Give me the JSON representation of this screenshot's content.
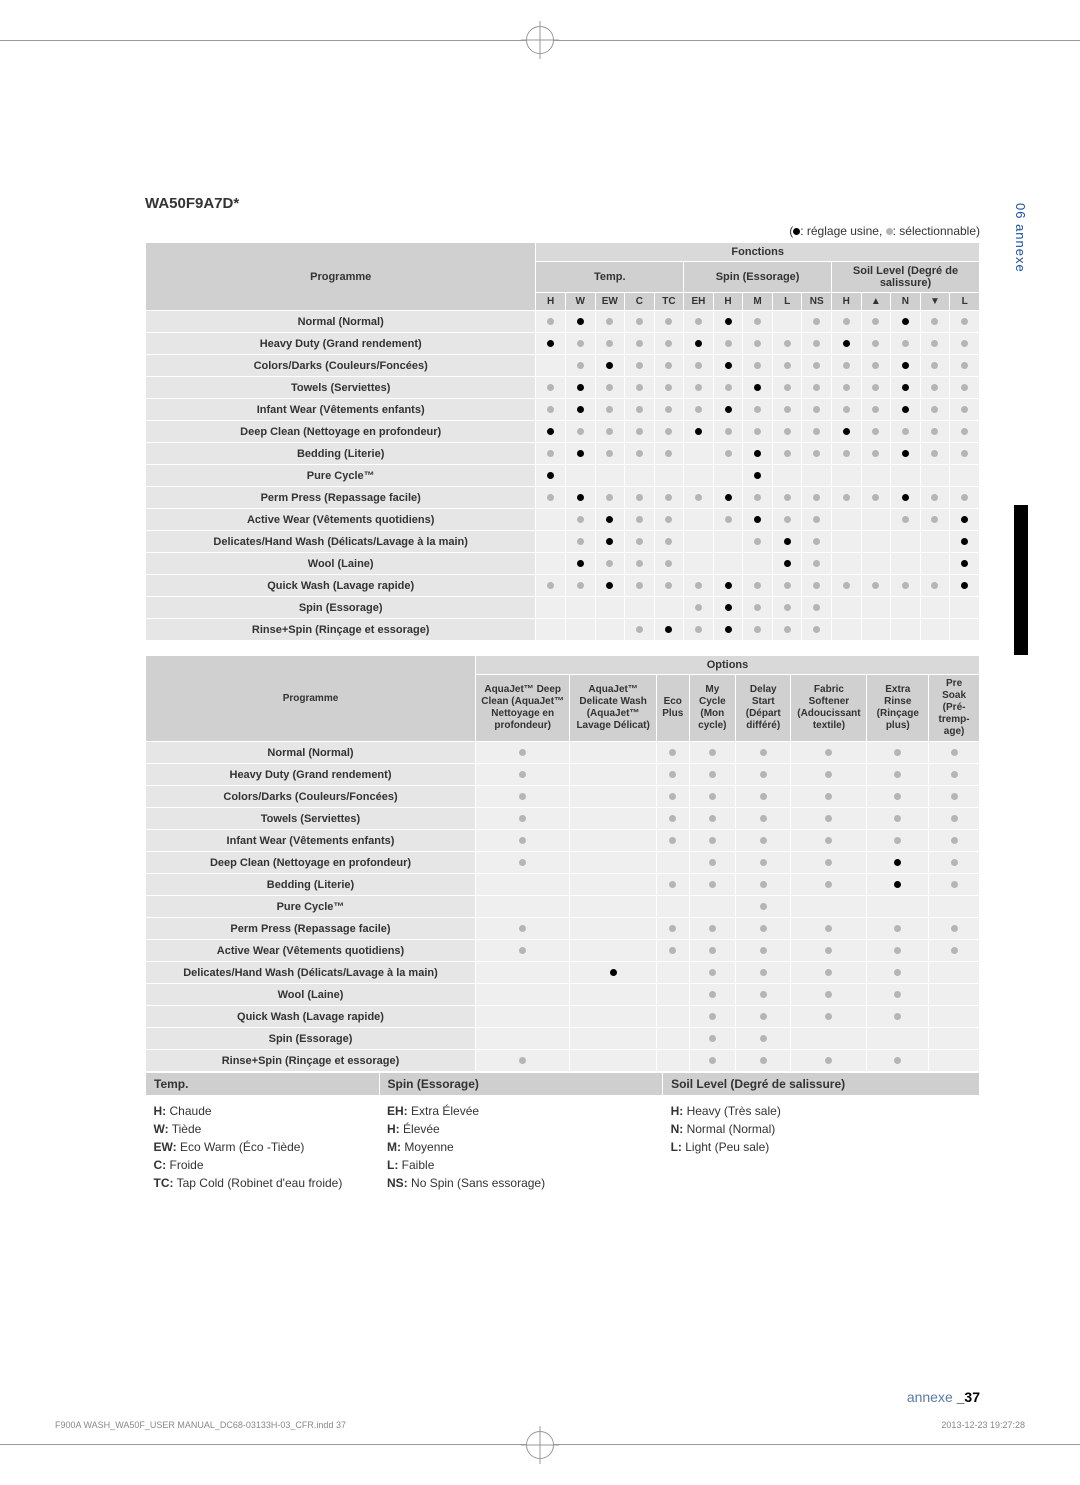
{
  "model": "WA50F9A7D*",
  "legend_top": "(●: réglage usine, ●: sélectionnable)",
  "side_tab": "06  annexe",
  "footer": "annexe _37",
  "print_foot_left": "F900A WASH_WA50F_USER MANUAL_DC68-03133H-03_CFR.indd   37",
  "print_foot_right": "2013-12-23   19:27:28",
  "t1": {
    "hdr_programme": "Programme",
    "hdr_fonctions": "Fonctions",
    "hdr_temp": "Temp.",
    "hdr_spin": "Spin (Essorage)",
    "hdr_soil": "Soil Level (Degré de salissure)",
    "cols_temp": [
      "H",
      "W",
      "EW",
      "C",
      "TC"
    ],
    "cols_spin": [
      "EH",
      "H",
      "M",
      "L",
      "NS"
    ],
    "cols_soil": [
      "H",
      "▲",
      "N",
      "▼",
      "L"
    ],
    "rows": [
      {
        "label": "Normal (Normal)",
        "v": [
          "s",
          "f",
          "s",
          "s",
          "s",
          "s",
          "f",
          "s",
          "",
          "s",
          "s",
          "s",
          "f",
          "s",
          "s"
        ]
      },
      {
        "label": "Heavy Duty (Grand rendement)",
        "v": [
          "f",
          "s",
          "s",
          "s",
          "s",
          "f",
          "s",
          "s",
          "s",
          "s",
          "f",
          "s",
          "s",
          "s",
          "s"
        ]
      },
      {
        "label": "Colors/Darks (Couleurs/Foncées)",
        "v": [
          "",
          "s",
          "f",
          "s",
          "s",
          "s",
          "f",
          "s",
          "s",
          "s",
          "s",
          "s",
          "f",
          "s",
          "s"
        ]
      },
      {
        "label": "Towels (Serviettes)",
        "v": [
          "s",
          "f",
          "s",
          "s",
          "s",
          "s",
          "s",
          "f",
          "s",
          "s",
          "s",
          "s",
          "f",
          "s",
          "s"
        ]
      },
      {
        "label": "Infant Wear (Vêtements enfants)",
        "v": [
          "s",
          "f",
          "s",
          "s",
          "s",
          "s",
          "f",
          "s",
          "s",
          "s",
          "s",
          "s",
          "f",
          "s",
          "s"
        ]
      },
      {
        "label": "Deep Clean (Nettoyage en profondeur)",
        "v": [
          "f",
          "s",
          "s",
          "s",
          "s",
          "f",
          "s",
          "s",
          "s",
          "s",
          "f",
          "s",
          "s",
          "s",
          "s"
        ]
      },
      {
        "label": "Bedding (Literie)",
        "v": [
          "s",
          "f",
          "s",
          "s",
          "s",
          "",
          "s",
          "f",
          "s",
          "s",
          "s",
          "s",
          "f",
          "s",
          "s"
        ]
      },
      {
        "label": "Pure Cycle™",
        "v": [
          "f",
          "",
          "",
          "",
          "",
          "",
          "",
          "f",
          "",
          "",
          "",
          "",
          "",
          "",
          ""
        ]
      },
      {
        "label": "Perm Press (Repassage facile)",
        "v": [
          "s",
          "f",
          "s",
          "s",
          "s",
          "s",
          "f",
          "s",
          "s",
          "s",
          "s",
          "s",
          "f",
          "s",
          "s"
        ]
      },
      {
        "label": "Active Wear (Vêtements quotidiens)",
        "v": [
          "",
          "s",
          "f",
          "s",
          "s",
          "",
          "s",
          "f",
          "s",
          "s",
          "",
          "",
          "s",
          "s",
          "f"
        ]
      },
      {
        "label": "Delicates/Hand Wash (Délicats/Lavage à la main)",
        "v": [
          "",
          "s",
          "f",
          "s",
          "s",
          "",
          "",
          "s",
          "f",
          "s",
          "",
          "",
          "",
          "",
          "f"
        ]
      },
      {
        "label": "Wool (Laine)",
        "v": [
          "",
          "f",
          "s",
          "s",
          "s",
          "",
          "",
          "",
          "f",
          "s",
          "",
          "",
          "",
          "",
          "f"
        ]
      },
      {
        "label": "Quick Wash (Lavage rapide)",
        "v": [
          "s",
          "s",
          "f",
          "s",
          "s",
          "s",
          "f",
          "s",
          "s",
          "s",
          "s",
          "s",
          "s",
          "s",
          "f"
        ]
      },
      {
        "label": "Spin (Essorage)",
        "v": [
          "",
          "",
          "",
          "",
          "",
          "s",
          "f",
          "s",
          "s",
          "s",
          "",
          "",
          "",
          "",
          ""
        ]
      },
      {
        "label": "Rinse+Spin (Rinçage et essorage)",
        "v": [
          "",
          "",
          "",
          "s",
          "f",
          "s",
          "f",
          "s",
          "s",
          "s",
          "",
          "",
          "",
          "",
          ""
        ]
      }
    ]
  },
  "t2": {
    "hdr_programme": "Programme",
    "hdr_options": "Options",
    "cols": [
      "AquaJet™ Deep Clean (AquaJet™ Nettoyage en profondeur)",
      "AquaJet™ Delicate Wash (AquaJet™ Lavage Délicat)",
      "Eco Plus",
      "My Cycle (Mon cycle)",
      "Delay Start (Départ différé)",
      "Fabric Softener (Adouciss­ant textile)",
      "Extra Rinse (Rinçage plus)",
      "Pre Soak (Pré-tremp­age)"
    ],
    "rows": [
      {
        "label": "Normal (Normal)",
        "v": [
          "s",
          "",
          "s",
          "s",
          "s",
          "s",
          "s",
          "s"
        ]
      },
      {
        "label": "Heavy Duty (Grand rendement)",
        "v": [
          "s",
          "",
          "s",
          "s",
          "s",
          "s",
          "s",
          "s"
        ]
      },
      {
        "label": "Colors/Darks (Couleurs/Foncées)",
        "v": [
          "s",
          "",
          "s",
          "s",
          "s",
          "s",
          "s",
          "s"
        ]
      },
      {
        "label": "Towels (Serviettes)",
        "v": [
          "s",
          "",
          "s",
          "s",
          "s",
          "s",
          "s",
          "s"
        ]
      },
      {
        "label": "Infant Wear (Vêtements enfants)",
        "v": [
          "s",
          "",
          "s",
          "s",
          "s",
          "s",
          "s",
          "s"
        ]
      },
      {
        "label": "Deep Clean (Nettoyage en profondeur)",
        "v": [
          "s",
          "",
          "",
          "s",
          "s",
          "s",
          "f",
          "s"
        ]
      },
      {
        "label": "Bedding (Literie)",
        "v": [
          "",
          "",
          "s",
          "s",
          "s",
          "s",
          "f",
          "s"
        ]
      },
      {
        "label": "Pure Cycle™",
        "v": [
          "",
          "",
          "",
          "",
          "s",
          "",
          "",
          ""
        ]
      },
      {
        "label": "Perm Press (Repassage facile)",
        "v": [
          "s",
          "",
          "s",
          "s",
          "s",
          "s",
          "s",
          "s"
        ]
      },
      {
        "label": "Active Wear (Vêtements quotidiens)",
        "v": [
          "s",
          "",
          "s",
          "s",
          "s",
          "s",
          "s",
          "s"
        ]
      },
      {
        "label": "Delicates/Hand Wash (Délicats/Lavage à la main)",
        "v": [
          "",
          "f",
          "",
          "s",
          "s",
          "s",
          "s",
          ""
        ]
      },
      {
        "label": "Wool (Laine)",
        "v": [
          "",
          "",
          "",
          "s",
          "s",
          "s",
          "s",
          ""
        ]
      },
      {
        "label": "Quick Wash (Lavage rapide)",
        "v": [
          "",
          "",
          "",
          "s",
          "s",
          "s",
          "s",
          ""
        ]
      },
      {
        "label": "Spin (Essorage)",
        "v": [
          "",
          "",
          "",
          "s",
          "s",
          "",
          "",
          ""
        ]
      },
      {
        "label": "Rinse+Spin (Rinçage et essorage)",
        "v": [
          "s",
          "",
          "",
          "s",
          "s",
          "s",
          "s",
          ""
        ]
      }
    ]
  },
  "t3": {
    "hdr": [
      "Temp.",
      "Spin (Essorage)",
      "Soil Level (Degré de salissure)"
    ],
    "c1": {
      "H": "Chaude",
      "W": "Tiède",
      "EW": "Eco Warm (Éco -Tiède)",
      "C": "Froide",
      "TC": "Tap Cold (Robinet d'eau froide)"
    },
    "c2": {
      "EH": "Extra Élevée",
      "H": "Élevée",
      "M": "Moyenne",
      "L": "Faible",
      "NS": "No Spin (Sans essorage)"
    },
    "c3": {
      "H": "Heavy (Très sale)",
      "N": "Normal (Normal)",
      "L": "Light (Peu sale)"
    }
  }
}
